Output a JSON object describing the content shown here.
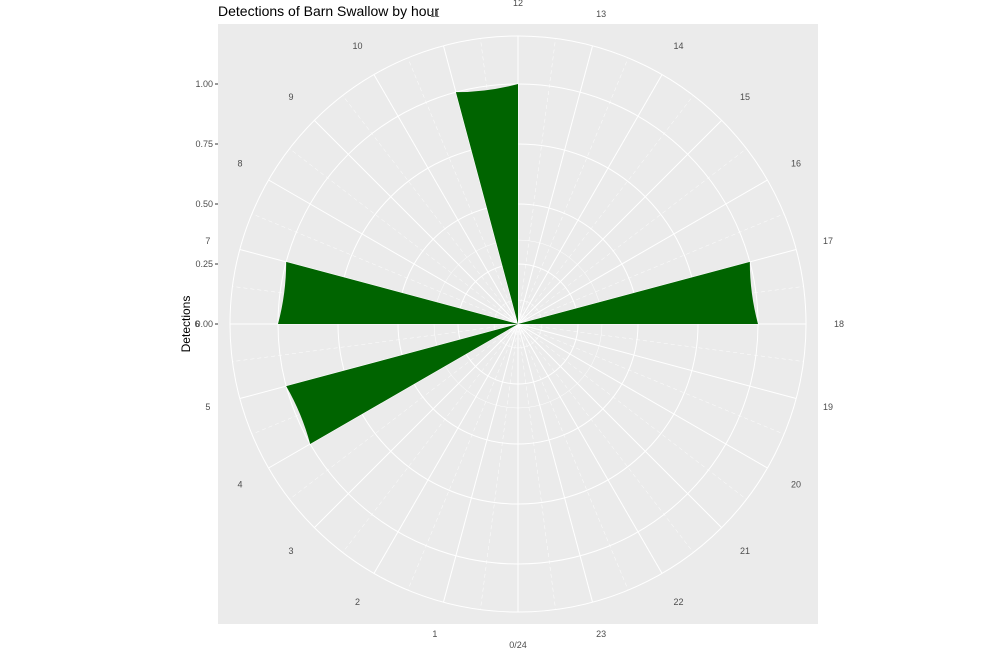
{
  "chart_data": {
    "type": "bar",
    "coord": "polar",
    "title": "Detections of Barn Swallow by hour",
    "ylabel": "Detections",
    "xlabel": "",
    "theta_labels": [
      "0/24",
      "1",
      "2",
      "3",
      "4",
      "5",
      "6",
      "7",
      "8",
      "9",
      "10",
      "11",
      "12",
      "13",
      "14",
      "15",
      "16",
      "17",
      "18",
      "19",
      "20",
      "21",
      "22",
      "23"
    ],
    "y_ticks": [
      "0.00",
      "0.25",
      "0.50",
      "0.75",
      "1.00"
    ],
    "ylim": [
      0,
      1.2
    ],
    "bars": [
      {
        "hour": 4,
        "value": 1.0
      },
      {
        "hour": 6,
        "value": 1.0
      },
      {
        "hour": 11,
        "value": 1.0
      },
      {
        "hour": 17,
        "value": 1.0
      }
    ],
    "grid": true,
    "colors": {
      "bar": "#006400",
      "panel": "#ebebeb",
      "grid": "#ffffff"
    }
  }
}
